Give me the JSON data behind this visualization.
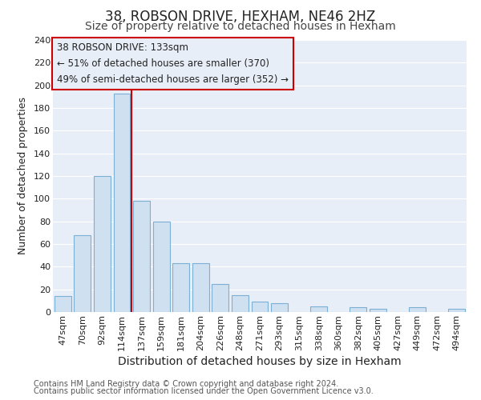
{
  "title": "38, ROBSON DRIVE, HEXHAM, NE46 2HZ",
  "subtitle": "Size of property relative to detached houses in Hexham",
  "xlabel": "Distribution of detached houses by size in Hexham",
  "ylabel": "Number of detached properties",
  "bar_labels": [
    "47sqm",
    "70sqm",
    "92sqm",
    "114sqm",
    "137sqm",
    "159sqm",
    "181sqm",
    "204sqm",
    "226sqm",
    "248sqm",
    "271sqm",
    "293sqm",
    "315sqm",
    "338sqm",
    "360sqm",
    "382sqm",
    "405sqm",
    "427sqm",
    "449sqm",
    "472sqm",
    "494sqm"
  ],
  "bar_values": [
    14,
    68,
    120,
    193,
    98,
    80,
    43,
    43,
    25,
    15,
    9,
    8,
    0,
    5,
    0,
    4,
    3,
    0,
    4,
    0,
    3
  ],
  "bar_color": "#cfe0f0",
  "bar_edge_color": "#7bafd4",
  "vline_index": 3.5,
  "vline_color": "#cc0000",
  "annotation_title": "38 ROBSON DRIVE: 133sqm",
  "annotation_line1": "← 51% of detached houses are smaller (370)",
  "annotation_line2": "49% of semi-detached houses are larger (352) →",
  "annotation_box_edge": "#cc0000",
  "ylim": [
    0,
    240
  ],
  "yticks": [
    0,
    20,
    40,
    60,
    80,
    100,
    120,
    140,
    160,
    180,
    200,
    220,
    240
  ],
  "footer1": "Contains HM Land Registry data © Crown copyright and database right 2024.",
  "footer2": "Contains public sector information licensed under the Open Government Licence v3.0.",
  "plot_bg_color": "#e8eef8",
  "fig_bg_color": "#ffffff",
  "grid_color": "#ffffff",
  "title_fontsize": 12,
  "subtitle_fontsize": 10,
  "tick_fontsize": 8,
  "xlabel_fontsize": 10,
  "ylabel_fontsize": 9,
  "annotation_fontsize": 8.5,
  "footer_fontsize": 7
}
